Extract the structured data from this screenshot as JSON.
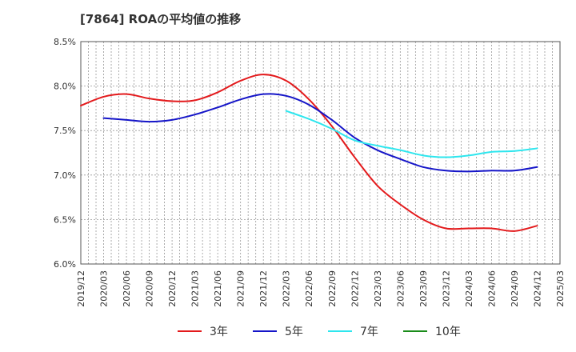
{
  "chart_data": {
    "type": "line",
    "title": "[7864]  ROAの平均値の推移",
    "xlabel": "",
    "ylabel": "",
    "ylim": [
      6.0,
      8.5
    ],
    "y_ticks": [
      "6.0%",
      "6.5%",
      "7.0%",
      "7.5%",
      "8.0%",
      "8.5%"
    ],
    "x_ticks": [
      "2019/12",
      "2020/03",
      "2020/06",
      "2020/09",
      "2020/12",
      "2021/03",
      "2021/06",
      "2021/09",
      "2021/12",
      "2022/03",
      "2022/06",
      "2022/09",
      "2022/12",
      "2023/03",
      "2023/06",
      "2023/09",
      "2023/12",
      "2024/03",
      "2024/06",
      "2024/09",
      "2024/12",
      "2025/03"
    ],
    "grid": true,
    "legend_position": "bottom",
    "series": [
      {
        "name": "3年",
        "color": "#e31a1c",
        "x": [
          "2019/12",
          "2020/03",
          "2020/06",
          "2020/09",
          "2020/12",
          "2021/03",
          "2021/06",
          "2021/09",
          "2021/12",
          "2022/03",
          "2022/06",
          "2022/09",
          "2022/12",
          "2023/03",
          "2023/06",
          "2023/09",
          "2023/12",
          "2024/03",
          "2024/06",
          "2024/09",
          "2024/12"
        ],
        "values": [
          7.78,
          7.88,
          7.91,
          7.86,
          7.83,
          7.84,
          7.93,
          8.06,
          8.13,
          8.06,
          7.85,
          7.55,
          7.2,
          6.88,
          6.67,
          6.5,
          6.4,
          6.4,
          6.4,
          6.37,
          6.43
        ]
      },
      {
        "name": "5年",
        "color": "#1515c8",
        "x": [
          "2020/03",
          "2020/06",
          "2020/09",
          "2020/12",
          "2021/03",
          "2021/06",
          "2021/09",
          "2021/12",
          "2022/03",
          "2022/06",
          "2022/09",
          "2022/12",
          "2023/03",
          "2023/06",
          "2023/09",
          "2023/12",
          "2024/03",
          "2024/06",
          "2024/09",
          "2024/12"
        ],
        "values": [
          7.64,
          7.62,
          7.6,
          7.62,
          7.68,
          7.76,
          7.85,
          7.91,
          7.89,
          7.79,
          7.62,
          7.42,
          7.28,
          7.18,
          7.09,
          7.05,
          7.04,
          7.05,
          7.05,
          7.09
        ]
      },
      {
        "name": "7年",
        "color": "#2ee6ee",
        "x": [
          "2022/03",
          "2022/06",
          "2022/09",
          "2022/12",
          "2023/03",
          "2023/06",
          "2023/09",
          "2023/12",
          "2024/03",
          "2024/06",
          "2024/09",
          "2024/12"
        ],
        "values": [
          7.72,
          7.63,
          7.52,
          7.39,
          7.33,
          7.28,
          7.22,
          7.2,
          7.22,
          7.26,
          7.27,
          7.3
        ]
      },
      {
        "name": "10年",
        "color": "#1a8c1a",
        "x": [],
        "values": []
      }
    ]
  }
}
